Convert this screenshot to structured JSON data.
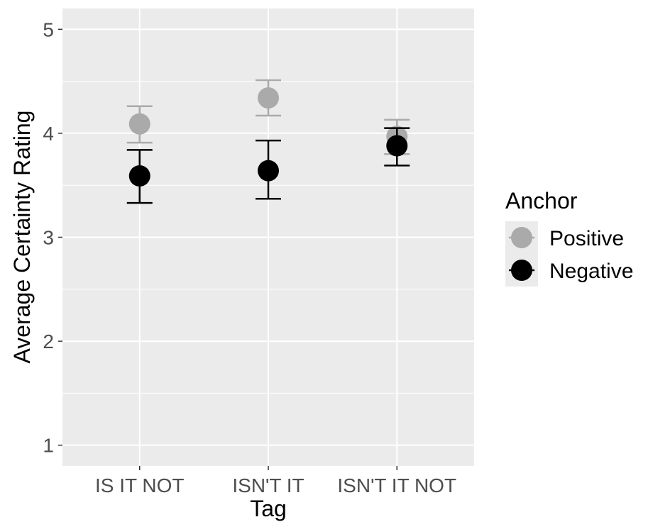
{
  "chart_data": {
    "type": "scatter",
    "title": "",
    "xlabel": "Tag",
    "ylabel": "Average Certainty Rating",
    "categories": [
      "IS IT NOT",
      "ISN'T IT",
      "ISN'T IT NOT"
    ],
    "ylim": [
      0.8,
      5.2
    ],
    "yticks": [
      1,
      2,
      3,
      4,
      5
    ],
    "y_tick_labels": [
      "1",
      "2",
      "3",
      "4",
      "5"
    ],
    "grid": true,
    "legend": {
      "title": "Anchor",
      "position": "right"
    },
    "series": [
      {
        "name": "Positive",
        "color": "#aaaaaa",
        "values": [
          4.09,
          4.34,
          3.97
        ],
        "error_low": [
          3.91,
          4.17,
          3.8
        ],
        "error_high": [
          4.26,
          4.51,
          4.13
        ]
      },
      {
        "name": "Negative",
        "color": "#000000",
        "values": [
          3.59,
          3.64,
          3.88
        ],
        "error_low": [
          3.33,
          3.37,
          3.69
        ],
        "error_high": [
          3.84,
          3.93,
          4.05
        ]
      }
    ],
    "style": {
      "panel_background": "#ebebeb",
      "grid_color": "#ffffff"
    }
  }
}
